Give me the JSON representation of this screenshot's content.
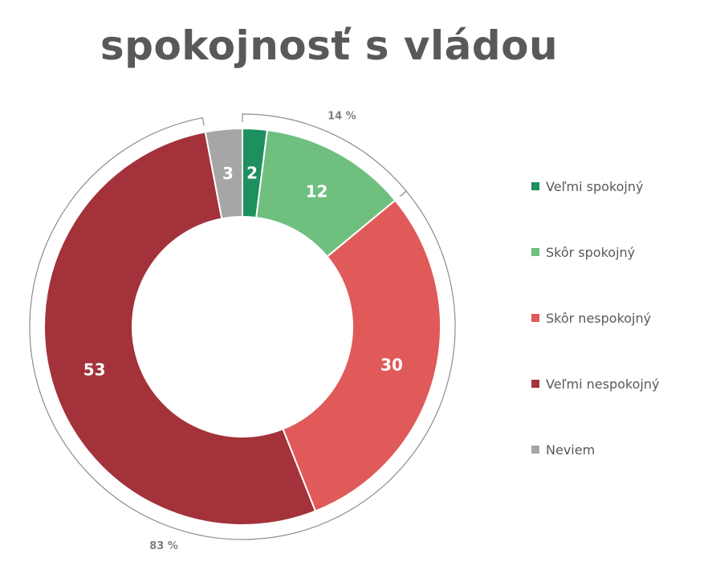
{
  "chart_data": {
    "type": "pie",
    "variant": "donut",
    "title": "spokojnosť s vládou",
    "categories": [
      "Veľmi spokojný",
      "Skôr spokojný",
      "Skôr nespokojný",
      "Veľmi nespokojný",
      "Neviem"
    ],
    "values": [
      2,
      12,
      30,
      53,
      3
    ],
    "colors": [
      "#1e8f5e",
      "#6fbf7f",
      "#e05a5a",
      "#a3323a",
      "#a6a6a6"
    ],
    "group_annotations": [
      {
        "label": "14 %",
        "categories": [
          "Veľmi spokojný",
          "Skôr spokojný"
        ]
      },
      {
        "label": "83 %",
        "categories": [
          "Skôr nespokojný",
          "Veľmi nespokojný"
        ]
      }
    ],
    "legend_position": "right"
  }
}
